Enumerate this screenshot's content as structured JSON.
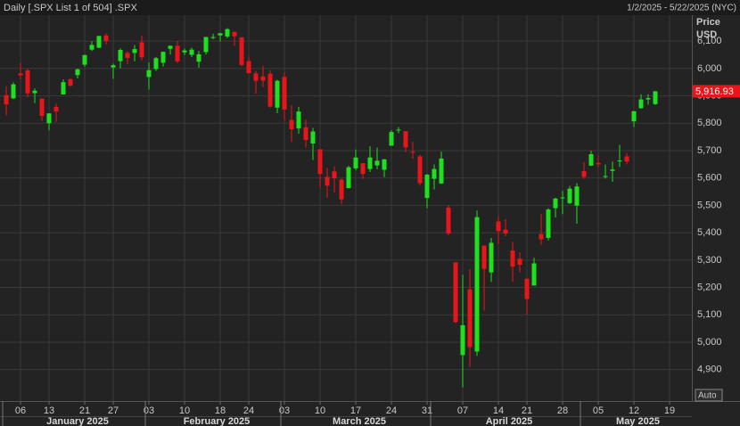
{
  "header": {
    "title": "Daily [.SPX List 1 of 504] .SPX",
    "range": "1/2/2025 - 5/22/2025 (NYC)"
  },
  "axis_header": {
    "line1": "Price",
    "line2": "USD"
  },
  "auto_button": "Auto",
  "chart_data": {
    "type": "candlestick",
    "x": [
      0,
      1,
      2,
      3,
      4,
      5,
      6,
      7,
      8,
      9,
      10,
      11,
      12,
      13,
      14,
      15,
      16,
      17,
      18,
      19,
      20,
      21,
      22,
      23,
      24,
      25,
      26,
      27,
      28,
      29,
      30,
      31,
      32,
      33,
      34,
      35,
      36,
      37,
      38,
      39,
      40,
      41,
      42,
      43,
      44,
      45,
      46,
      47,
      48,
      49,
      50,
      51,
      52,
      53,
      54,
      55,
      56,
      57,
      58,
      59,
      60,
      61,
      62,
      63,
      64,
      65,
      66,
      67,
      68,
      69,
      70,
      71,
      72,
      73,
      74,
      75,
      76,
      77,
      78,
      79,
      80,
      81,
      82,
      83,
      84,
      85,
      86,
      87,
      88,
      89,
      90,
      91
    ],
    "open": [
      5903,
      5891,
      5982,
      5993,
      5910,
      5890,
      5800,
      5860,
      5905,
      5961,
      5976,
      6014,
      6069,
      6076,
      6121,
      6004,
      6027,
      6057,
      6057,
      6096,
      5969,
      5998,
      6021,
      6072,
      6083,
      6059,
      6050,
      6025,
      6060,
      6115,
      6121,
      6117,
      6134,
      6114,
      6027,
      5982,
      5971,
      5981,
      5857,
      5969,
      5812,
      5781,
      5785,
      5726,
      5705,
      5604,
      5624,
      5594,
      5563,
      5635,
      5654,
      5633,
      5646,
      5630,
      5718,
      5775,
      5771,
      5696,
      5679,
      5527,
      5597,
      5580,
      5492,
      5292,
      4953,
      5193,
      4966,
      5353,
      5255,
      5441,
      5411,
      5335,
      5305,
      5232,
      5207,
      5395,
      5381,
      5490,
      5529,
      5508,
      5499,
      5625,
      5645,
      5655,
      5606,
      5626,
      5663,
      5679,
      5807,
      5855,
      5887,
      5870
    ],
    "high": [
      5935,
      5949,
      6021,
      6000,
      5927,
      5890,
      5837,
      5871,
      5960,
      5964,
      6000,
      6051,
      6100,
      6119,
      6128,
      6018,
      6074,
      6063,
      6086,
      6121,
      6022,
      6042,
      6062,
      6084,
      6101,
      6073,
      6076,
      6064,
      6116,
      6127,
      6129,
      6147,
      6134,
      6114,
      6044,
      5992,
      6010,
      5994,
      5959,
      5986,
      5866,
      5860,
      5813,
      5783,
      5705,
      5636,
      5642,
      5598,
      5645,
      5704,
      5654,
      5716,
      5711,
      5670,
      5775,
      5786,
      5771,
      5732,
      5685,
      5615,
      5650,
      5696,
      5500,
      5292,
      5246,
      5267,
      5481,
      5353,
      5381,
      5460,
      5450,
      5367,
      5328,
      5232,
      5309,
      5469,
      5489,
      5528,
      5553,
      5571,
      5581,
      5658,
      5700,
      5683,
      5649,
      5660,
      5721,
      5691,
      5845,
      5906,
      5906,
      5917
    ],
    "low": [
      5829,
      5888,
      5960,
      5896,
      5874,
      5809,
      5774,
      5805,
      5905,
      5935,
      5964,
      6006,
      6064,
      6074,
      6088,
      5962,
      6001,
      6016,
      6026,
      6030,
      5923,
      5991,
      6007,
      6051,
      6019,
      6049,
      6042,
      6003,
      6051,
      6107,
      6099,
      6111,
      6084,
      6008,
      5982,
      5908,
      5932,
      5858,
      5837,
      5810,
      5732,
      5762,
      5711,
      5666,
      5564,
      5528,
      5546,
      5505,
      5563,
      5628,
      5597,
      5622,
      5632,
      5603,
      5718,
      5764,
      5694,
      5670,
      5572,
      5489,
      5558,
      5578,
      5390,
      5069,
      4835,
      4910,
      4950,
      5115,
      5220,
      5359,
      5387,
      5220,
      5255,
      5101,
      5207,
      5356,
      5372,
      5456,
      5468,
      5505,
      5433,
      5597,
      5644,
      5640,
      5598,
      5586,
      5640,
      5650,
      5786,
      5853,
      5868,
      5867
    ],
    "close": [
      5869,
      5942,
      5975,
      5909,
      5919,
      5827,
      5836,
      5843,
      5950,
      5937,
      5997,
      6049,
      6086,
      6119,
      6101,
      6012,
      6068,
      6039,
      6071,
      6041,
      5994,
      6038,
      6061,
      6083,
      6026,
      6066,
      6069,
      6052,
      6115,
      6115,
      6129,
      6144,
      6118,
      6013,
      5983,
      5955,
      5956,
      5861,
      5955,
      5850,
      5778,
      5843,
      5739,
      5770,
      5615,
      5572,
      5599,
      5522,
      5639,
      5675,
      5615,
      5675,
      5663,
      5668,
      5768,
      5777,
      5712,
      5693,
      5581,
      5612,
      5633,
      5671,
      5397,
      5074,
      5062,
      4982,
      5457,
      5268,
      5363,
      5406,
      5397,
      5276,
      5283,
      5158,
      5288,
      5376,
      5485,
      5525,
      5529,
      5561,
      5569,
      5604,
      5687,
      5650,
      5607,
      5631,
      5664,
      5660,
      5844,
      5887,
      5892,
      5916.93
    ],
    "up_color": "#1ee01e",
    "down_color": "#e8161b",
    "last_price": {
      "value": 5916.93,
      "label": "5,916.93"
    },
    "xlim": [
      -0.875,
      96.125
    ],
    "xticks": [
      {
        "value": 2,
        "label": "06"
      },
      {
        "value": 6,
        "label": "13"
      },
      {
        "value": 11,
        "label": "21"
      },
      {
        "value": 15,
        "label": "27"
      },
      {
        "value": 20,
        "label": "03"
      },
      {
        "value": 25,
        "label": "10"
      },
      {
        "value": 30,
        "label": "18"
      },
      {
        "value": 34,
        "label": "24"
      },
      {
        "value": 39,
        "label": "03"
      },
      {
        "value": 44,
        "label": "10"
      },
      {
        "value": 49,
        "label": "17"
      },
      {
        "value": 54,
        "label": "24"
      },
      {
        "value": 59,
        "label": "31"
      },
      {
        "value": 64,
        "label": "07"
      },
      {
        "value": 69,
        "label": "14"
      },
      {
        "value": 73,
        "label": "21"
      },
      {
        "value": 78,
        "label": "28"
      },
      {
        "value": 83,
        "label": "05"
      },
      {
        "value": 88,
        "label": "12"
      },
      {
        "value": 93,
        "label": "19"
      }
    ],
    "month_ticks": [
      {
        "value": 0,
        "label": "January 2025"
      },
      {
        "value": 20,
        "label": "February 2025"
      },
      {
        "value": 39,
        "label": "March 2025"
      },
      {
        "value": 60,
        "label": "April 2025"
      },
      {
        "value": 81,
        "label": "May 2025"
      }
    ],
    "ylim": [
      4785,
      6195
    ],
    "yticks": [
      {
        "value": 4900,
        "label": "4,900"
      },
      {
        "value": 5000,
        "label": "5,000"
      },
      {
        "value": 5100,
        "label": "5,100"
      },
      {
        "value": 5200,
        "label": "5,200"
      },
      {
        "value": 5300,
        "label": "5,300"
      },
      {
        "value": 5400,
        "label": "5,400"
      },
      {
        "value": 5500,
        "label": "5,500"
      },
      {
        "value": 5600,
        "label": "5,600"
      },
      {
        "value": 5700,
        "label": "5,700"
      },
      {
        "value": 5800,
        "label": "5,800"
      },
      {
        "value": 5900,
        "label": "5,900"
      },
      {
        "value": 6000,
        "label": "6,000"
      },
      {
        "value": 6100,
        "label": "6,100"
      }
    ],
    "grid": true
  }
}
